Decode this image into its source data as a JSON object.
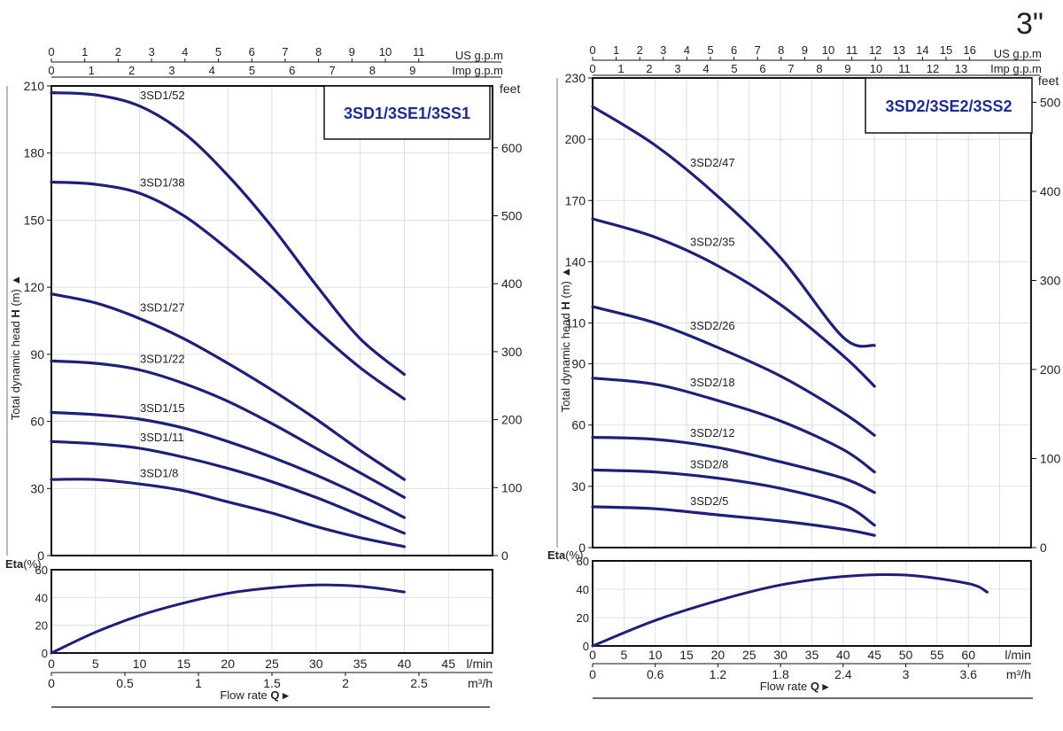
{
  "page": {
    "size_label": "3\""
  },
  "chart_data": [
    {
      "type": "line",
      "model_box": "3SD1/3SE1/3SS1",
      "head_axis": {
        "label_prefix": "Total dynamic head ",
        "label_bold": "H",
        "label_unit": " (m)",
        "ticks": [
          0,
          30,
          60,
          90,
          120,
          150,
          180,
          210
        ],
        "range": [
          0,
          210
        ]
      },
      "feet_axis": {
        "label": "feet",
        "ticks": [
          0,
          100,
          200,
          300,
          400,
          500,
          600
        ]
      },
      "us_gpm_axis": {
        "label": "US g.p.m",
        "ticks": [
          0,
          1,
          2,
          3,
          4,
          5,
          6,
          7,
          8,
          9,
          10,
          11
        ]
      },
      "imp_gpm_axis": {
        "label": "Imp g.p.m",
        "ticks": [
          0,
          1,
          2,
          3,
          4,
          5,
          6,
          7,
          8,
          9
        ]
      },
      "flow_axis": {
        "label": "l/min",
        "ticks": [
          0,
          5,
          10,
          15,
          20,
          25,
          30,
          35,
          40,
          45
        ],
        "range": [
          0,
          50
        ]
      },
      "m3h_axis": {
        "label": "m³/h",
        "tick_labels": [
          "0",
          "0.5",
          "1",
          "1.5",
          "2",
          "2.5"
        ],
        "ticks": [
          0,
          0.5,
          1,
          1.5,
          2,
          2.5
        ]
      },
      "xlabel_prefix": "Flow  rate  ",
      "xlabel_bold": "Q",
      "series": [
        {
          "name": "3SD1/52",
          "x": [
            0,
            5,
            10,
            15,
            20,
            25,
            30,
            35,
            40
          ],
          "y": [
            207,
            206,
            201,
            189,
            170,
            147,
            121,
            97,
            81
          ]
        },
        {
          "name": "3SD1/38",
          "x": [
            0,
            5,
            10,
            15,
            20,
            25,
            30,
            35,
            40
          ],
          "y": [
            167,
            166,
            162,
            152,
            137,
            120,
            101,
            84,
            70
          ]
        },
        {
          "name": "3SD1/27",
          "x": [
            0,
            5,
            10,
            15,
            20,
            25,
            30,
            35,
            40
          ],
          "y": [
            117,
            113,
            106,
            97,
            86,
            74,
            61,
            47,
            34
          ]
        },
        {
          "name": "3SD1/22",
          "x": [
            0,
            5,
            10,
            15,
            20,
            25,
            30,
            35,
            40
          ],
          "y": [
            87,
            86,
            83,
            77,
            69,
            59,
            48,
            37,
            26
          ]
        },
        {
          "name": "3SD1/15",
          "x": [
            0,
            5,
            10,
            15,
            20,
            25,
            30,
            35,
            40
          ],
          "y": [
            64,
            63,
            61,
            57,
            51,
            44,
            36,
            27,
            17
          ]
        },
        {
          "name": "3SD1/11",
          "x": [
            0,
            5,
            10,
            15,
            20,
            25,
            30,
            35,
            40
          ],
          "y": [
            51,
            50,
            48,
            44,
            39,
            33,
            26,
            18,
            10
          ]
        },
        {
          "name": "3SD1/8",
          "x": [
            0,
            5,
            10,
            15,
            20,
            25,
            30,
            35,
            40
          ],
          "y": [
            34,
            34,
            32,
            29,
            24,
            19,
            13,
            8,
            4
          ]
        }
      ],
      "efficiency": {
        "label_bold": "Eta",
        "label_unit": "(%)",
        "ticks": [
          0,
          20,
          40,
          60
        ],
        "range": [
          0,
          60
        ],
        "x": [
          0,
          5,
          10,
          15,
          20,
          25,
          30,
          35,
          40
        ],
        "y": [
          0,
          15,
          27,
          36,
          43,
          47,
          49,
          48,
          44
        ]
      }
    },
    {
      "type": "line",
      "model_box": "3SD2/3SE2/3SS2",
      "head_axis": {
        "label_prefix": "Total dynamic head ",
        "label_bold": "H",
        "label_unit": " (m)",
        "ticks": [
          0,
          30,
          60,
          90,
          110,
          140,
          170,
          200,
          230
        ],
        "range": [
          0,
          230
        ]
      },
      "feet_axis": {
        "label": "feet",
        "ticks": [
          0,
          100,
          200,
          300,
          400,
          500
        ]
      },
      "us_gpm_axis": {
        "label": "US g.p.m",
        "ticks": [
          0,
          1,
          2,
          3,
          4,
          5,
          6,
          7,
          8,
          9,
          10,
          11,
          12,
          13,
          14,
          15,
          16
        ]
      },
      "imp_gpm_axis": {
        "label": "Imp g.p.m",
        "ticks": [
          0,
          1,
          2,
          3,
          4,
          5,
          6,
          7,
          8,
          9,
          10,
          11,
          12,
          13
        ]
      },
      "flow_axis": {
        "label": "l/min",
        "ticks": [
          0,
          5,
          10,
          15,
          20,
          25,
          30,
          35,
          40,
          45,
          50,
          55,
          60
        ],
        "range": [
          0,
          70
        ]
      },
      "m3h_axis": {
        "label": "m³/h",
        "tick_labels": [
          "0",
          "0.6",
          "1.2",
          "1.8",
          "2.4",
          "3",
          "3.6"
        ],
        "ticks": [
          0,
          0.6,
          1.2,
          1.8,
          2.4,
          3,
          3.6
        ]
      },
      "xlabel_prefix": "Flow  rate  ",
      "xlabel_bold": "Q",
      "series": [
        {
          "name": "3SD2/47",
          "x": [
            0,
            10,
            20,
            30,
            40,
            45
          ],
          "y": [
            216,
            197,
            172,
            142,
            103,
            99
          ]
        },
        {
          "name": "3SD2/35",
          "x": [
            0,
            10,
            20,
            30,
            40,
            45
          ],
          "y": [
            161,
            152,
            138,
            119,
            94,
            79
          ]
        },
        {
          "name": "3SD2/26",
          "x": [
            0,
            10,
            20,
            30,
            40,
            45
          ],
          "y": [
            118,
            110,
            98,
            84,
            66,
            55
          ]
        },
        {
          "name": "3SD2/18",
          "x": [
            0,
            10,
            20,
            30,
            40,
            45
          ],
          "y": [
            83,
            80,
            72,
            62,
            48,
            37
          ]
        },
        {
          "name": "3SD2/12",
          "x": [
            0,
            10,
            20,
            30,
            40,
            45
          ],
          "y": [
            54,
            53,
            49,
            42,
            34,
            27
          ]
        },
        {
          "name": "3SD2/8",
          "x": [
            0,
            10,
            20,
            30,
            40,
            45
          ],
          "y": [
            38,
            37,
            34,
            29,
            21,
            11
          ]
        },
        {
          "name": "3SD2/5",
          "x": [
            0,
            10,
            20,
            30,
            40,
            45
          ],
          "y": [
            20,
            19,
            16,
            13,
            9,
            6
          ]
        }
      ],
      "efficiency": {
        "label_bold": "Eta",
        "label_unit": "(%)",
        "ticks": [
          0,
          20,
          40,
          60
        ],
        "range": [
          0,
          60
        ],
        "x": [
          0,
          10,
          20,
          30,
          40,
          50,
          60,
          63
        ],
        "y": [
          0,
          18,
          32,
          43,
          49,
          50,
          44,
          38
        ]
      }
    }
  ]
}
